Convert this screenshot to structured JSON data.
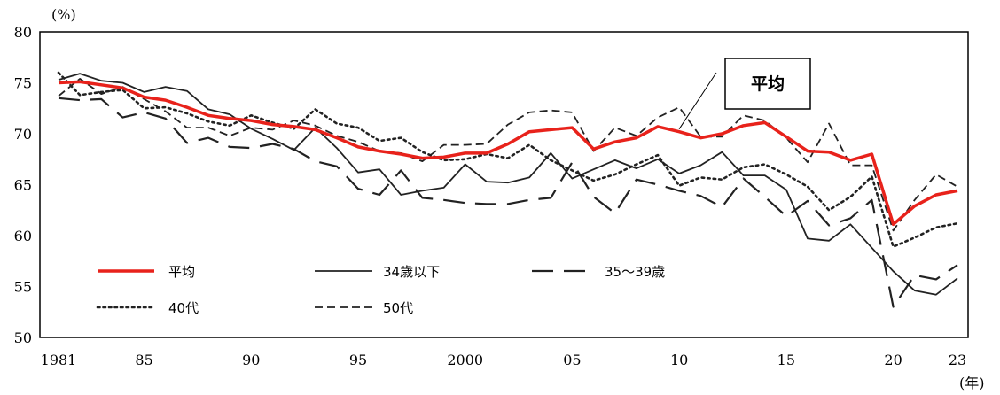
{
  "chart_data": {
    "type": "line",
    "ylabel": "(%)",
    "xunit": "(年)",
    "ylim": [
      50,
      80
    ],
    "yticks": [
      50,
      55,
      60,
      65,
      70,
      75,
      80
    ],
    "xlim": [
      1981,
      2023
    ],
    "xticks": [
      {
        "value": 1981,
        "label": "1981"
      },
      {
        "value": 1985,
        "label": "85"
      },
      {
        "value": 1990,
        "label": "90"
      },
      {
        "value": 1995,
        "label": "95"
      },
      {
        "value": 2000,
        "label": "2000"
      },
      {
        "value": 2005,
        "label": "05"
      },
      {
        "value": 2010,
        "label": "10"
      },
      {
        "value": 2015,
        "label": "15"
      },
      {
        "value": 2020,
        "label": "20"
      },
      {
        "value": 2023,
        "label": "23"
      }
    ],
    "x": [
      1981,
      1982,
      1983,
      1984,
      1985,
      1986,
      1987,
      1988,
      1989,
      1990,
      1991,
      1992,
      1993,
      1994,
      1995,
      1996,
      1997,
      1998,
      1999,
      2000,
      2001,
      2002,
      2003,
      2004,
      2005,
      2006,
      2007,
      2008,
      2009,
      2010,
      2011,
      2012,
      2013,
      2014,
      2015,
      2016,
      2017,
      2018,
      2019,
      2020,
      2021,
      2022,
      2023
    ],
    "series": [
      {
        "name": "平均",
        "color": "#e8221b",
        "style": "solid",
        "width": 3.5,
        "values": [
          75.0,
          75.1,
          74.8,
          74.5,
          73.6,
          73.3,
          72.6,
          71.8,
          71.5,
          71.3,
          70.9,
          70.7,
          70.4,
          69.6,
          68.7,
          68.3,
          68.0,
          67.6,
          67.7,
          68.1,
          68.1,
          69.0,
          70.2,
          70.4,
          70.6,
          68.5,
          69.2,
          69.6,
          70.7,
          70.2,
          69.6,
          70.0,
          70.8,
          71.1,
          69.7,
          68.3,
          68.2,
          67.4,
          68.0,
          61.1,
          62.9,
          64.0,
          64.4
        ]
      },
      {
        "name": "34歳以下",
        "color": "#222222",
        "style": "solid",
        "width": 1.8,
        "values": [
          75.3,
          75.9,
          75.2,
          75.0,
          74.1,
          74.6,
          74.2,
          72.4,
          71.9,
          70.5,
          69.5,
          68.4,
          70.6,
          68.6,
          66.2,
          66.5,
          64.0,
          64.4,
          64.7,
          67.0,
          65.3,
          65.2,
          65.7,
          68.1,
          65.6,
          66.5,
          67.4,
          66.6,
          67.5,
          66.1,
          66.9,
          68.2,
          65.9,
          65.9,
          64.5,
          59.7,
          59.5,
          61.1,
          58.8,
          56.5,
          54.6,
          54.2,
          55.8
        ]
      },
      {
        "name": "35～39歳",
        "color": "#222222",
        "style": "longdash",
        "width": 2.2,
        "values": [
          73.5,
          73.3,
          73.4,
          71.6,
          72.1,
          71.5,
          69.1,
          69.6,
          68.7,
          68.6,
          69.0,
          68.5,
          67.3,
          66.8,
          64.6,
          64.0,
          66.4,
          63.7,
          63.5,
          63.2,
          63.1,
          63.1,
          63.5,
          63.7,
          67.2,
          63.8,
          62.2,
          65.5,
          65.0,
          64.4,
          63.9,
          62.8,
          65.6,
          63.8,
          61.9,
          63.4,
          61.0,
          61.7,
          63.5,
          53.0,
          56.1,
          55.7,
          57.1
        ]
      },
      {
        "name": "40代",
        "color": "#222222",
        "style": "dotted",
        "width": 2.6,
        "values": [
          76.0,
          73.8,
          74.1,
          74.3,
          72.5,
          72.6,
          72.0,
          71.2,
          70.8,
          71.8,
          71.1,
          70.5,
          72.4,
          71.0,
          70.6,
          69.3,
          69.6,
          68.2,
          67.4,
          67.5,
          68.0,
          67.6,
          68.9,
          67.4,
          66.4,
          65.4,
          66.0,
          67.0,
          67.9,
          64.9,
          65.7,
          65.5,
          66.7,
          67.0,
          66.0,
          64.8,
          62.5,
          63.8,
          65.8,
          58.9,
          59.8,
          60.8,
          61.2
        ]
      },
      {
        "name": "50代",
        "color": "#222222",
        "style": "shortdash",
        "width": 1.8,
        "values": [
          73.7,
          75.4,
          73.9,
          74.6,
          73.4,
          72.2,
          70.6,
          70.6,
          69.8,
          70.6,
          70.4,
          71.3,
          70.8,
          69.8,
          69.2,
          68.3,
          68.1,
          67.3,
          68.9,
          68.9,
          69.0,
          70.9,
          72.1,
          72.3,
          72.1,
          68.3,
          70.6,
          69.8,
          71.6,
          72.6,
          69.7,
          69.7,
          71.8,
          71.3,
          69.6,
          67.2,
          71.0,
          66.9,
          66.9,
          60.5,
          63.5,
          66.0,
          64.8
        ]
      }
    ],
    "legend": [
      "平均",
      "34歳以下",
      "35～39歳",
      "40代",
      "50代"
    ],
    "annotation": {
      "text": "平均",
      "points_to_x": 2010
    }
  }
}
